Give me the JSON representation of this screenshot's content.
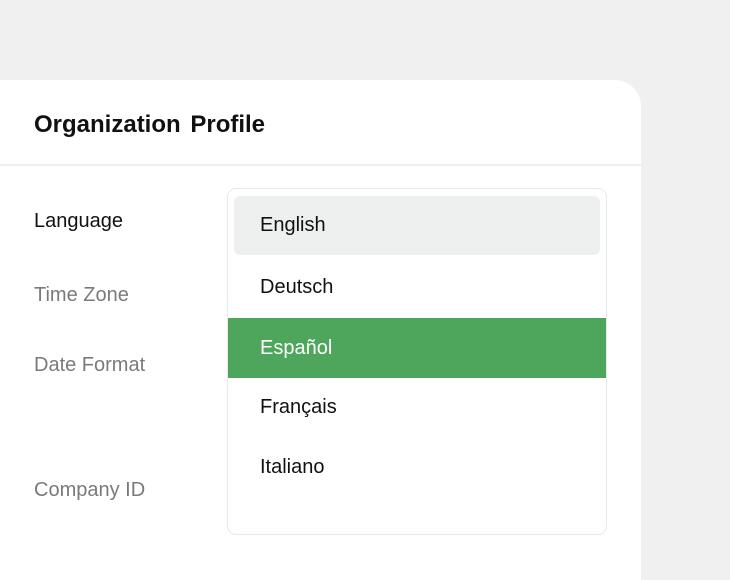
{
  "card": {
    "title": "Organization Profile"
  },
  "fields": [
    {
      "label": "Language",
      "active": true
    },
    {
      "label": "Time Zone"
    },
    {
      "label": "Date Format"
    },
    {
      "label": "Company ID"
    }
  ],
  "dropdown": {
    "options": [
      "English",
      "Deutsch",
      "Español",
      "Français",
      "Italiano"
    ],
    "hovered": "English",
    "selected": "Español",
    "selected_color": "#4ea65c",
    "hover_color": "#edf0ef"
  }
}
